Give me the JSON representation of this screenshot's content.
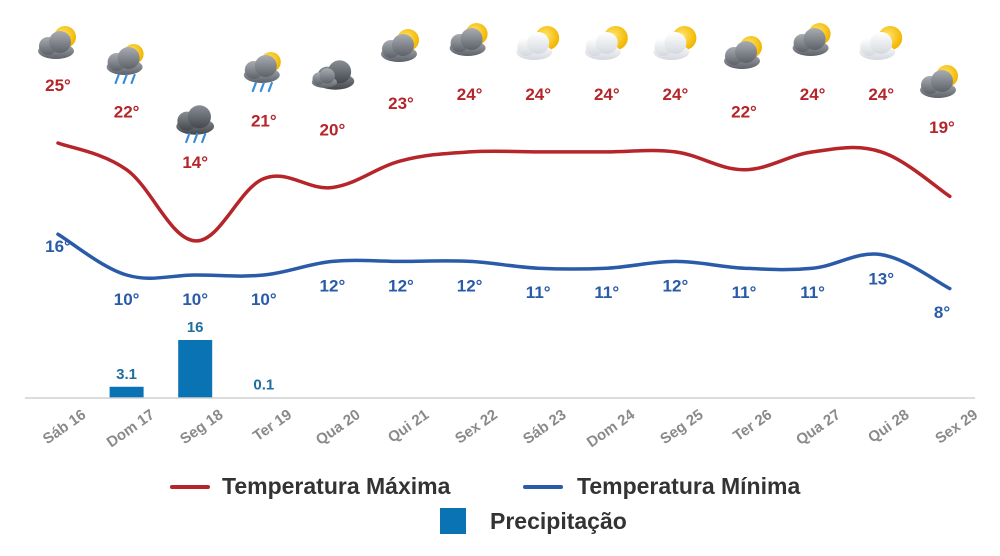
{
  "chart_data": {
    "type": "line",
    "categories": [
      "Sáb 16",
      "Dom 17",
      "Seg 18",
      "Ter 19",
      "Qua 20",
      "Qui 21",
      "Sex 22",
      "Sáb 23",
      "Dom 24",
      "Seg 25",
      "Ter 26",
      "Qua 27",
      "Qui 28",
      "Sex 29"
    ],
    "series": [
      {
        "name": "Temperatura Máxima",
        "color": "#b5252a",
        "values": [
          25,
          22,
          14,
          21,
          20,
          23,
          24,
          24,
          24,
          24,
          22,
          24,
          24,
          19
        ],
        "labels": [
          "25°",
          "22°",
          "14°",
          "21°",
          "20°",
          "23°",
          "24°",
          "24°",
          "24°",
          "24°",
          "22°",
          "24°",
          "24°",
          "19°"
        ]
      },
      {
        "name": "Temperatura Mínima",
        "color": "#2a5ba8",
        "values": [
          16,
          10,
          10,
          10,
          12,
          12,
          12,
          11,
          11,
          12,
          11,
          11,
          13,
          8
        ],
        "labels": [
          "16°",
          "10°",
          "10°",
          "10°",
          "12°",
          "12°",
          "12°",
          "11°",
          "11°",
          "12°",
          "11°",
          "11°",
          "13°",
          "8°"
        ]
      },
      {
        "name": "Precipitação",
        "color": "#0a73b3",
        "type": "bar",
        "values": [
          0,
          3.1,
          16,
          0.1,
          0,
          0,
          0,
          0,
          0,
          0,
          0,
          0,
          0,
          0
        ],
        "labels": [
          "",
          "3.1",
          "16",
          "0.1",
          "",
          "",
          "",
          "",
          "",
          "",
          "",
          "",
          "",
          ""
        ]
      }
    ],
    "icons": [
      "partly-cloudy-icon",
      "cloud-rain-sun-icon",
      "rain-cloud-icon",
      "cloud-rain-sun-icon",
      "cloudy-icon",
      "partly-cloudy-icon",
      "partly-cloudy-icon",
      "sunny-cloud-icon",
      "sunny-cloud-icon",
      "sunny-cloud-icon",
      "partly-cloudy-icon",
      "partly-cloudy-icon",
      "sunny-cloud-icon",
      "partly-cloudy-icon"
    ],
    "legend": {
      "max_label": "Temperatura Máxima",
      "min_label": "Temperatura Mínima",
      "precip_label": "Precipitação",
      "placement": "bottom"
    },
    "title": "",
    "xlabel": "",
    "ylabel": "",
    "grid": false
  }
}
